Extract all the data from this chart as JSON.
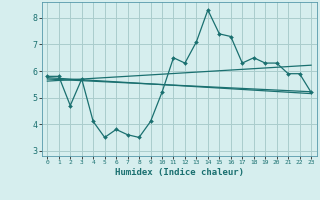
{
  "xlabel": "Humidex (Indice chaleur)",
  "ylabel": "",
  "background_color": "#d6eeee",
  "grid_color": "#aacccc",
  "line_color": "#1a7070",
  "xlim": [
    -0.5,
    23.5
  ],
  "ylim": [
    2.8,
    8.6
  ],
  "yticks": [
    3,
    4,
    5,
    6,
    7,
    8
  ],
  "xticks": [
    0,
    1,
    2,
    3,
    4,
    5,
    6,
    7,
    8,
    9,
    10,
    11,
    12,
    13,
    14,
    15,
    16,
    17,
    18,
    19,
    20,
    21,
    22,
    23
  ],
  "series1": [
    5.8,
    5.8,
    4.7,
    5.7,
    4.1,
    3.5,
    3.8,
    3.6,
    3.5,
    4.1,
    5.2,
    6.5,
    6.3,
    7.1,
    8.3,
    7.4,
    7.3,
    6.3,
    6.5,
    6.3,
    6.3,
    5.9,
    5.9,
    5.2
  ],
  "series2_x": [
    0,
    23
  ],
  "series2_y": [
    5.75,
    5.15
  ],
  "series3_x": [
    0,
    23
  ],
  "series3_y": [
    5.62,
    6.22
  ],
  "series4_x": [
    0,
    23
  ],
  "series4_y": [
    5.7,
    5.22
  ]
}
